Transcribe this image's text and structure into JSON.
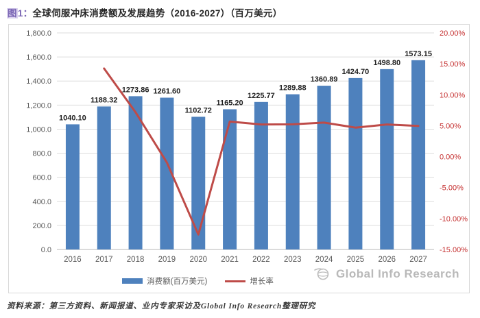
{
  "title": {
    "prefix_char": "图",
    "prefix_rest": "1：",
    "text": "全球伺服冲床消费额及发展趋势（2016-2027）（百万美元）"
  },
  "chart_data": {
    "type": "combo-bar-line",
    "categories": [
      "2016",
      "2017",
      "2018",
      "2019",
      "2020",
      "2021",
      "2022",
      "2023",
      "2024",
      "2025",
      "2026",
      "2027"
    ],
    "series": [
      {
        "name": "消费额(百万美元)",
        "type": "bar",
        "axis": "left",
        "color": "#4E81BD",
        "values": [
          1040.1,
          1188.32,
          1273.86,
          1261.6,
          1102.72,
          1165.2,
          1225.77,
          1289.88,
          1360.89,
          1424.7,
          1498.8,
          1573.15
        ],
        "labels": [
          "1040.10",
          "1188.32",
          "1273.86",
          "1261.60",
          "1102.72",
          "1165.20",
          "1225.77",
          "1289.88",
          "1360.89",
          "1424.70",
          "1498.80",
          "1573.15"
        ]
      },
      {
        "name": "增长率",
        "type": "line",
        "axis": "right",
        "color": "#BE4B48",
        "values": [
          null,
          14.25,
          7.2,
          -0.96,
          -12.59,
          5.67,
          5.2,
          5.23,
          5.5,
          4.69,
          5.2,
          4.96
        ]
      }
    ],
    "left_axis": {
      "min": 0,
      "max": 1800,
      "step": 200,
      "tick_labels": [
        "0.0",
        "200.0",
        "400.0",
        "600.0",
        "800.0",
        "1,000.0",
        "1,200.0",
        "1,400.0",
        "1,600.0",
        "1,800.0"
      ],
      "color": "#595959"
    },
    "right_axis": {
      "min": -15,
      "max": 20,
      "step": 5,
      "tick_labels": [
        "20.00%",
        "15.00%",
        "10.00%",
        "5.00%",
        "0.00%",
        "-5.00%",
        "-10.00%",
        "-15.00%"
      ],
      "color": "#C53030"
    },
    "grid": true,
    "legend_position": "bottom"
  },
  "watermark": {
    "text": "Global Info Research"
  },
  "source_note": "资料来源：第三方资料、新闻报道、业内专家采访及Global Info Research整理研究",
  "colors": {
    "bar": "#4E81BD",
    "line": "#BE4B48",
    "right_axis_text": "#C53030",
    "left_axis_text": "#595959",
    "gridline": "#DCDCDC",
    "baseline": "#B7B7B7",
    "title_accent": "#7A66B4",
    "bar_label": "#1F1F1F"
  }
}
